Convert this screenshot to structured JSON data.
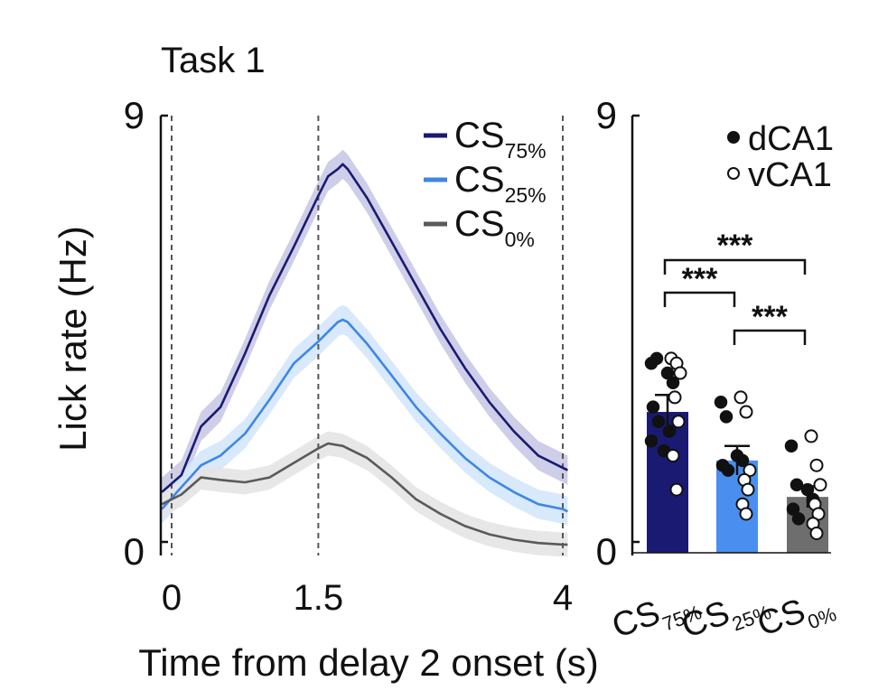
{
  "chart_data": [
    {
      "type": "line",
      "title": "Task 1",
      "xlabel": "Time from delay 2 onset (s)",
      "ylabel": "Lick rate (Hz)",
      "xlim": [
        -0.1,
        4.05
      ],
      "ylim": [
        0,
        9
      ],
      "xticks": [
        {
          "value": 0,
          "label": "0"
        },
        {
          "value": 1.5,
          "label": "1.5"
        },
        {
          "value": 4,
          "label": "4"
        }
      ],
      "yticks": [
        {
          "value": 0,
          "label": "0"
        },
        {
          "value": 9,
          "label": "9"
        }
      ],
      "vlines": [
        0,
        1.5,
        4
      ],
      "legend_location": "top-right",
      "series": [
        {
          "name": "CS",
          "sub": "75%",
          "color": "#1a1a72",
          "band_color": "#c9c9e6",
          "x": [
            -0.1,
            0.1,
            0.3,
            0.5,
            0.75,
            1.0,
            1.25,
            1.5,
            1.6,
            1.7,
            1.75,
            1.8,
            2.0,
            2.25,
            2.5,
            2.75,
            3.0,
            3.25,
            3.5,
            3.75,
            4.0,
            4.05
          ],
          "y": [
            1.25,
            1.6,
            2.6,
            3.0,
            4.1,
            5.3,
            6.3,
            7.35,
            7.75,
            7.9,
            8.0,
            7.9,
            7.3,
            6.4,
            5.5,
            4.6,
            3.8,
            3.1,
            2.5,
            2.0,
            1.75,
            1.7
          ],
          "sem": 0.3
        },
        {
          "name": "CS",
          "sub": "25%",
          "color": "#3f86e6",
          "band_color": "#d3e7fb",
          "x": [
            -0.1,
            0.1,
            0.3,
            0.5,
            0.75,
            1.0,
            1.25,
            1.5,
            1.6,
            1.7,
            1.75,
            1.8,
            2.0,
            2.25,
            2.5,
            2.75,
            3.0,
            3.25,
            3.5,
            3.75,
            4.0,
            4.05
          ],
          "y": [
            0.9,
            1.35,
            1.8,
            2.0,
            2.45,
            3.15,
            3.9,
            4.35,
            4.55,
            4.75,
            4.8,
            4.75,
            4.3,
            3.65,
            3.0,
            2.45,
            1.95,
            1.55,
            1.25,
            1.0,
            0.9,
            0.85
          ],
          "sem": 0.3
        },
        {
          "name": "CS",
          "sub": "0%",
          "color": "#5a5a5a",
          "band_color": "#e4e4e4",
          "x": [
            -0.1,
            0.1,
            0.3,
            0.5,
            0.75,
            1.0,
            1.25,
            1.5,
            1.6,
            1.75,
            2.0,
            2.25,
            2.5,
            2.75,
            3.0,
            3.25,
            3.5,
            3.75,
            4.0,
            4.05
          ],
          "y": [
            1.0,
            1.2,
            1.55,
            1.5,
            1.45,
            1.55,
            1.85,
            2.15,
            2.25,
            2.2,
            1.95,
            1.55,
            1.1,
            0.8,
            0.55,
            0.38,
            0.27,
            0.2,
            0.17,
            0.17
          ],
          "sem": 0.25
        }
      ]
    },
    {
      "type": "bar",
      "ylim": [
        0,
        9
      ],
      "yticks": [
        {
          "value": 0,
          "label": "0"
        },
        {
          "value": 9,
          "label": "9"
        }
      ],
      "legend": [
        {
          "label": "dCA1",
          "marker": "filled"
        },
        {
          "label": "vCA1",
          "marker": "open"
        }
      ],
      "categories": [
        {
          "name": "CS",
          "sub": "75%",
          "value": 2.9,
          "sem": 0.35,
          "color": "#1a1a72",
          "dCA1": [
            3.9,
            4.0,
            3.7,
            3.5,
            3.0,
            2.7,
            2.5,
            2.3,
            2.1
          ],
          "vCA1": [
            4.0,
            3.9,
            3.7,
            3.2,
            2.7,
            2.0,
            1.3
          ]
        },
        {
          "name": "CS",
          "sub": "25%",
          "value": 1.9,
          "sem": 0.3,
          "color": "#4a8ff0",
          "dCA1": [
            3.1,
            2.8,
            2.0,
            1.9,
            1.8,
            1.7
          ],
          "vCA1": [
            3.2,
            2.9,
            1.7,
            1.5,
            1.3,
            1.0,
            0.8
          ]
        },
        {
          "name": "CS",
          "sub": "0%",
          "value": 1.15,
          "sem": 0.22,
          "color": "#6e6e6e",
          "dCA1": [
            2.2,
            1.4,
            1.3,
            1.1,
            0.9,
            0.7
          ],
          "vCA1": [
            2.4,
            1.8,
            1.4,
            1.0,
            0.8,
            0.6,
            0.4
          ]
        }
      ],
      "significance": [
        {
          "from": "CS 75%",
          "to": "CS 0%",
          "label": "***"
        },
        {
          "from": "CS 75%",
          "to": "CS 25%",
          "label": "***"
        },
        {
          "from": "CS 25%",
          "to": "CS 0%",
          "label": "***"
        }
      ]
    }
  ]
}
